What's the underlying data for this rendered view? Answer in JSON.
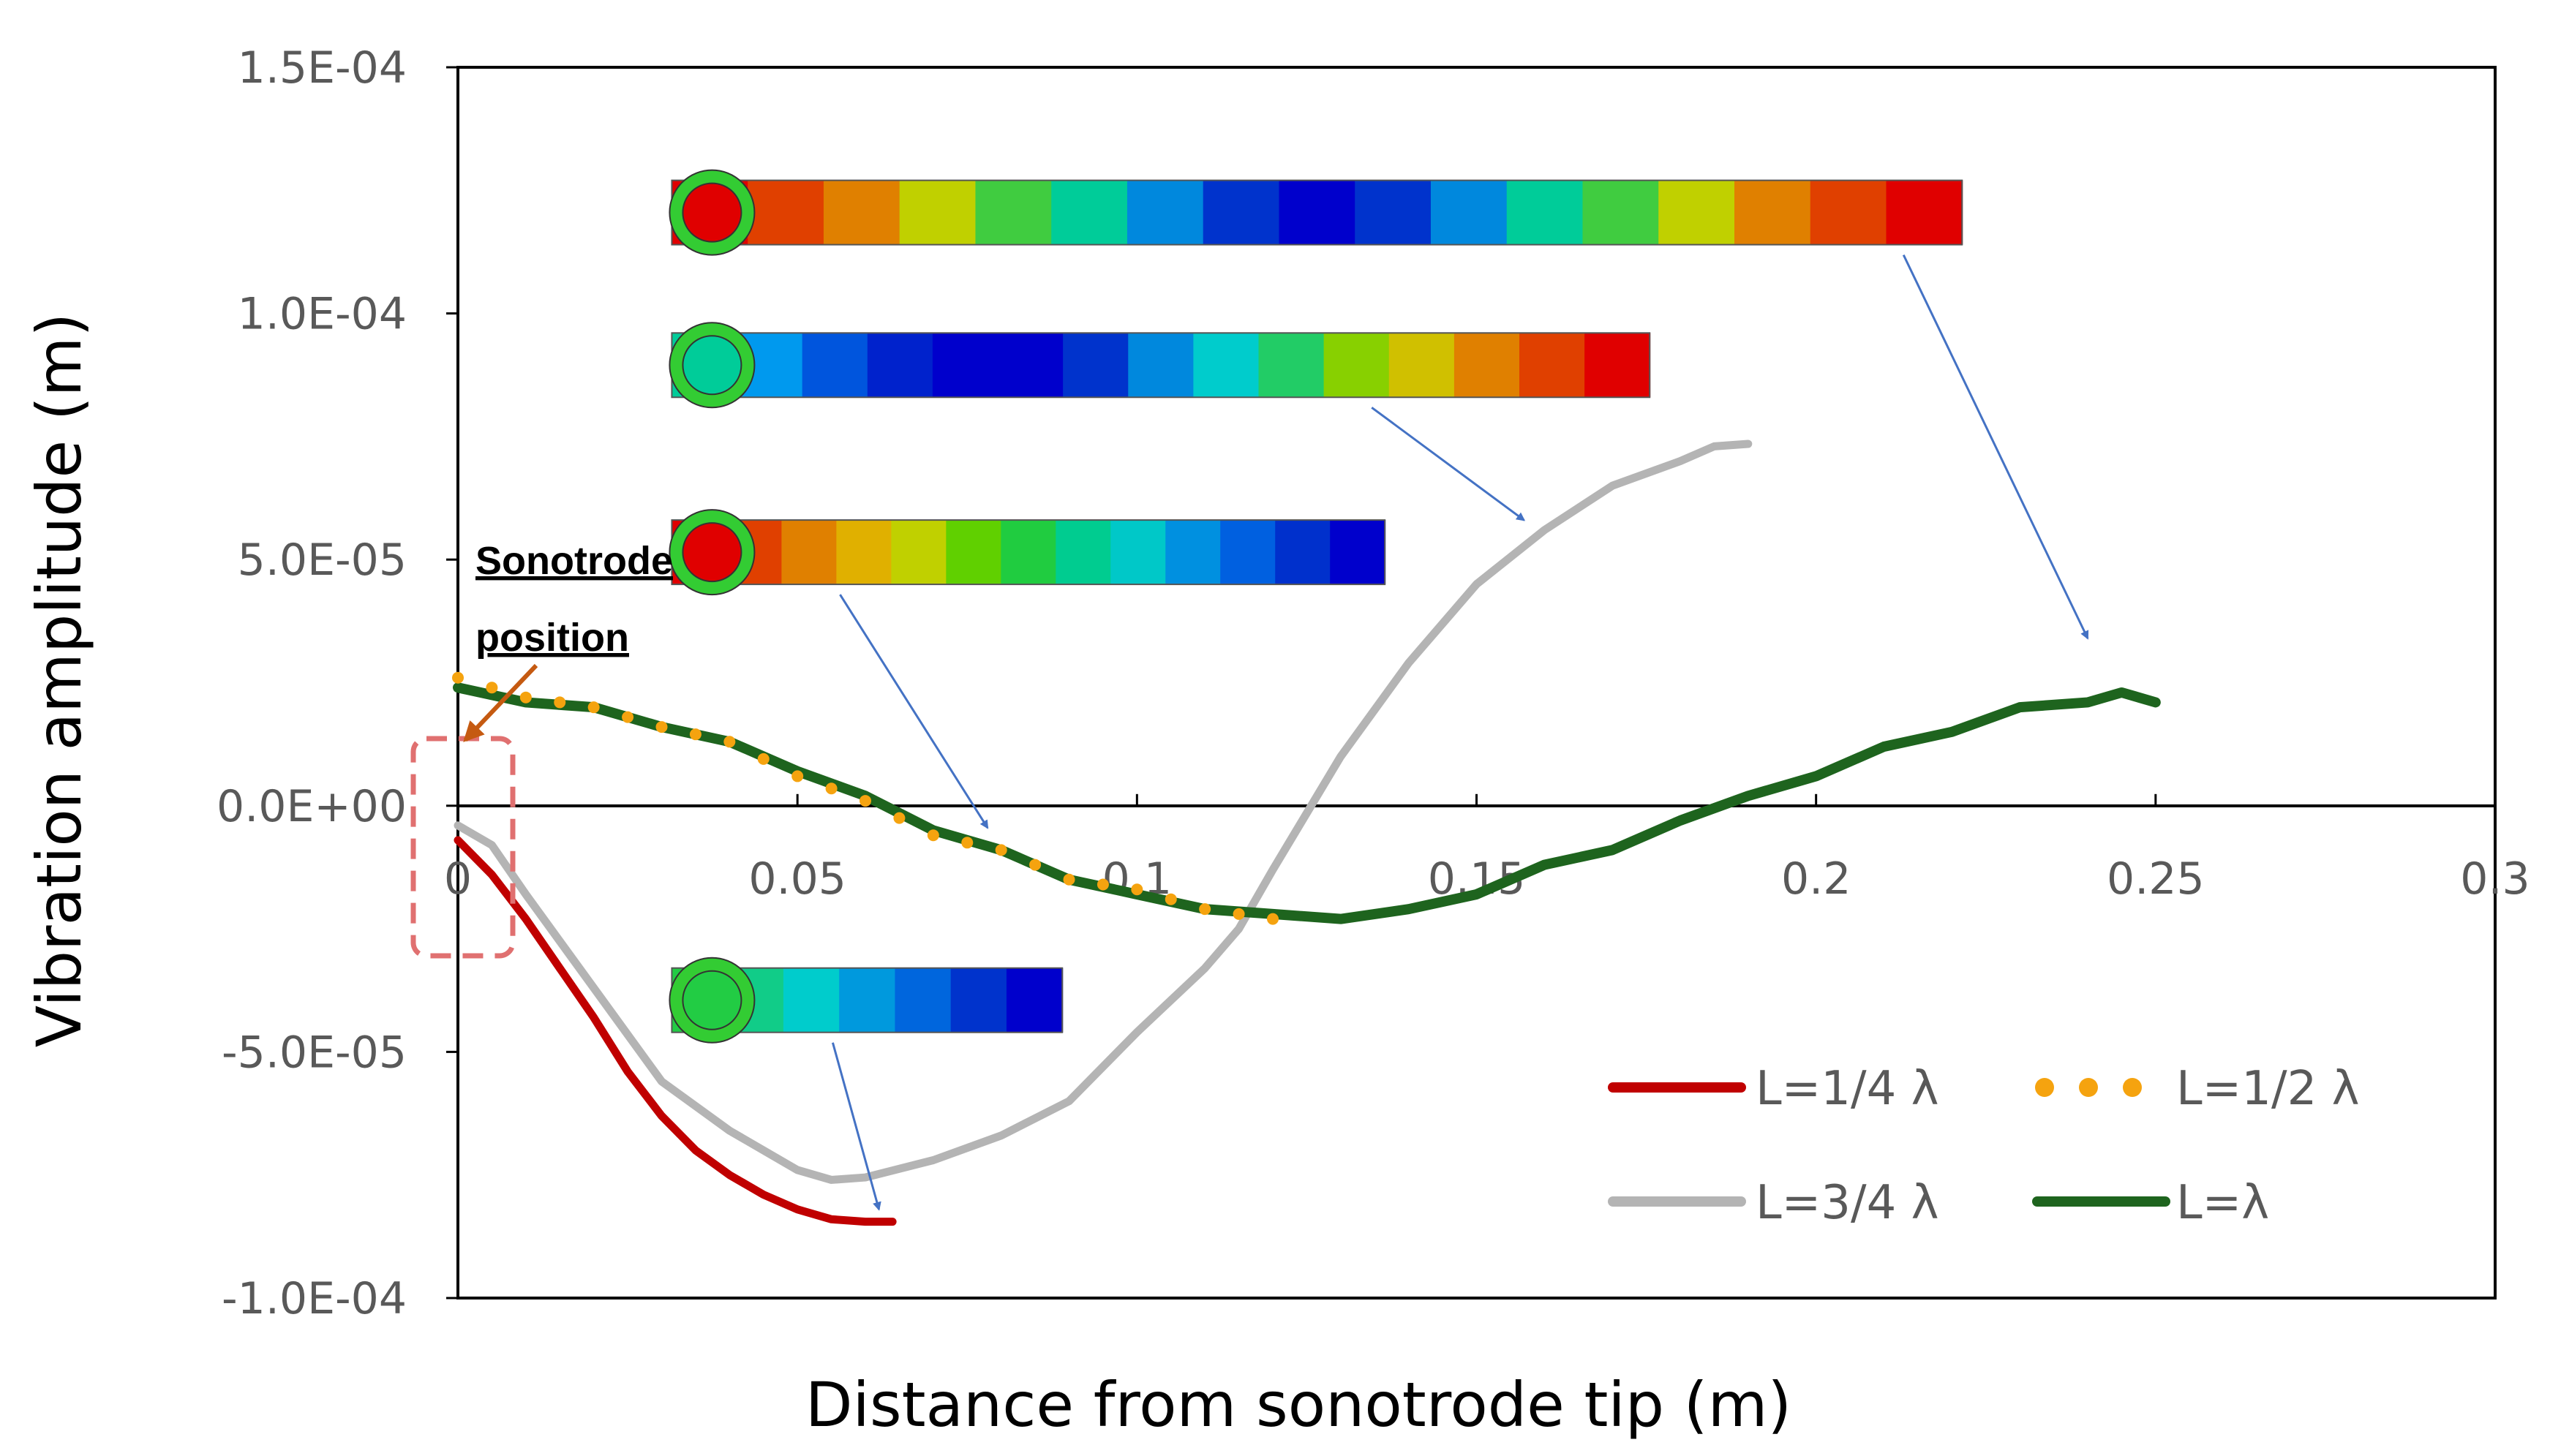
{
  "chart_data": {
    "type": "line",
    "title": "",
    "xlabel": "Distance from sonotrode tip (m)",
    "ylabel": "Vibration amplitude  (m)",
    "xlim": [
      0,
      0.3
    ],
    "ylim": [
      -0.0001,
      0.00015
    ],
    "x_ticks": [
      "0",
      "0.05",
      "0.1",
      "0.15",
      "0.2",
      "0.25",
      "0.3"
    ],
    "x_tick_values": [
      0,
      0.05,
      0.1,
      0.15,
      0.2,
      0.25,
      0.3
    ],
    "y_ticks": [
      "-1.0E-04",
      "-5.0E-05",
      "0.0E+00",
      "5.0E-05",
      "1.0E-04",
      "1.5E-04"
    ],
    "y_tick_values": [
      -0.0001,
      -5e-05,
      0,
      5e-05,
      0.0001,
      0.00015
    ],
    "annotation": {
      "line1": "Sonotrode",
      "line2": "position"
    },
    "colors": {
      "quarter": "#c00000",
      "half": "#f5a30f",
      "three_quarter": "#b4b4b4",
      "full": "#1e641e",
      "arrow": "#4472c4",
      "marker": "#e07070"
    },
    "series": [
      {
        "name": "L=1/4 λ",
        "style": "solid",
        "x": [
          0,
          0.005,
          0.01,
          0.015,
          0.02,
          0.025,
          0.03,
          0.035,
          0.04,
          0.045,
          0.05,
          0.055,
          0.06,
          0.064
        ],
        "y": [
          -7e-06,
          -1.4e-05,
          -2.3e-05,
          -3.3e-05,
          -4.3e-05,
          -5.4e-05,
          -6.3e-05,
          -7e-05,
          -7.5e-05,
          -7.9e-05,
          -8.2e-05,
          -8.4e-05,
          -8.45e-05,
          -8.45e-05
        ]
      },
      {
        "name": "L=1/2 λ",
        "style": "dotted",
        "x": [
          0,
          0.01,
          0.02,
          0.03,
          0.04,
          0.05,
          0.06,
          0.07,
          0.08,
          0.09,
          0.1,
          0.11,
          0.12
        ],
        "y": [
          2.6e-05,
          2.2e-05,
          2e-05,
          1.6e-05,
          1.3e-05,
          6e-06,
          1e-06,
          -6e-06,
          -9e-06,
          -1.5e-05,
          -1.7e-05,
          -2.1e-05,
          -2.3e-05
        ]
      },
      {
        "name": "L=3/4 λ",
        "style": "solid",
        "x": [
          0,
          0.005,
          0.01,
          0.02,
          0.03,
          0.04,
          0.05,
          0.055,
          0.06,
          0.07,
          0.08,
          0.09,
          0.1,
          0.11,
          0.115,
          0.12,
          0.13,
          0.14,
          0.15,
          0.16,
          0.17,
          0.18,
          0.185,
          0.19
        ],
        "y": [
          -4e-06,
          -8e-06,
          -1.8e-05,
          -3.7e-05,
          -5.6e-05,
          -6.6e-05,
          -7.4e-05,
          -7.6e-05,
          -7.55e-05,
          -7.2e-05,
          -6.7e-05,
          -6e-05,
          -4.6e-05,
          -3.3e-05,
          -2.5e-05,
          -1.3e-05,
          1e-05,
          2.9e-05,
          4.5e-05,
          5.6e-05,
          6.5e-05,
          7e-05,
          7.3e-05,
          7.35e-05
        ]
      },
      {
        "name": "L=λ",
        "style": "solid",
        "x": [
          0,
          0.01,
          0.02,
          0.03,
          0.04,
          0.05,
          0.06,
          0.07,
          0.08,
          0.09,
          0.1,
          0.11,
          0.12,
          0.13,
          0.14,
          0.15,
          0.16,
          0.17,
          0.18,
          0.19,
          0.2,
          0.21,
          0.22,
          0.23,
          0.24,
          0.245,
          0.25
        ],
        "y": [
          2.4e-05,
          2.1e-05,
          2e-05,
          1.6e-05,
          1.3e-05,
          7e-06,
          2e-06,
          -5e-06,
          -9e-06,
          -1.5e-05,
          -1.8e-05,
          -2.1e-05,
          -2.2e-05,
          -2.3e-05,
          -2.1e-05,
          -1.8e-05,
          -1.2e-05,
          -9e-06,
          -3e-06,
          2e-06,
          6e-06,
          1.2e-05,
          1.5e-05,
          2e-05,
          2.1e-05,
          2.3e-05,
          2.1e-05
        ]
      }
    ],
    "insets": [
      {
        "name": "L=1/4 λ",
        "length": 0.0575,
        "at_y": -3.95e-05,
        "colors": [
          "#22cc44",
          "#11cc88",
          "#00cccc",
          "#0099dd",
          "#0066dd",
          "#0033cc",
          "#0000cc"
        ],
        "target_x": 0.062,
        "target_y": -8.2e-05
      },
      {
        "name": "L=1/2 λ",
        "length": 0.105,
        "at_y": 5.15e-05,
        "colors": [
          "#e00000",
          "#e04000",
          "#e08000",
          "#e0b000",
          "#c0d000",
          "#60d000",
          "#20cc40",
          "#00cc90",
          "#00c8c8",
          "#0090e0",
          "#0060e0",
          "#0030cc",
          "#0000cc"
        ],
        "target_x": 0.078,
        "target_y": -4.5e-06
      },
      {
        "name": "L=3/4 λ",
        "length": 0.144,
        "at_y": 8.95e-05,
        "colors": [
          "#00cc99",
          "#0099ee",
          "#0055dd",
          "#0022cc",
          "#0000cc",
          "#0000cc",
          "#0033cc",
          "#0088dd",
          "#00cccc",
          "#22cc66",
          "#88d000",
          "#d0c000",
          "#e08000",
          "#e04000",
          "#e00000"
        ],
        "target_x": 0.157,
        "target_y": 5.8e-05
      },
      {
        "name": "L=λ",
        "length": 0.19,
        "at_y": 0.0001205,
        "colors": [
          "#e00000",
          "#e04000",
          "#e08000",
          "#c0d000",
          "#40cc40",
          "#00cc99",
          "#0088dd",
          "#0033cc",
          "#0000cc",
          "#0033cc",
          "#0088dd",
          "#00cc99",
          "#40cc40",
          "#c0d000",
          "#e08000",
          "#e04000",
          "#e00000"
        ],
        "target_x": 0.24,
        "target_y": 3.4e-05
      }
    ]
  }
}
